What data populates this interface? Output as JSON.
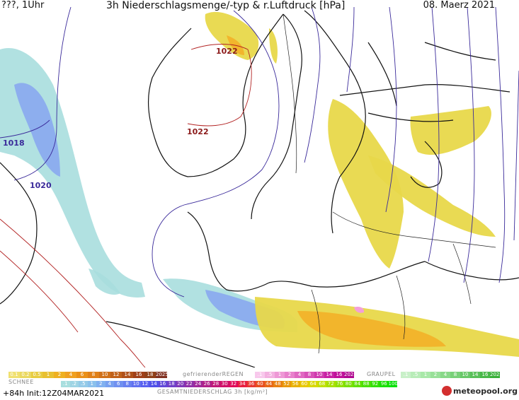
{
  "header": {
    "left": "???, 1Uhr",
    "title": "3h Niederschlagsmenge/-typ & r.Luftdruck [hPa]",
    "date": "08. Maerz 2021"
  },
  "isobars": [
    {
      "label": "1022",
      "color": "#8b1a1a"
    },
    {
      "label": "1022",
      "color": "#8b1a1a"
    },
    {
      "label": "1018",
      "color": "#3a2a9a"
    },
    {
      "label": "1020",
      "color": "#3a2a9a"
    }
  ],
  "legend": {
    "snow_label": "SCHNEE",
    "freezing_rain_label": "gefrierenderREGEN",
    "graupel_label": "GRAUPEL",
    "total_label": "GESAMTNIEDERSCHLAG 3h [kg/m²]",
    "rain_scale": [
      "0.1",
      "0.2",
      "0.5",
      "1",
      "2",
      "4",
      "6",
      "8",
      "10",
      "12",
      "14",
      "16",
      "18",
      "2025+"
    ],
    "freezing_scale": [
      ".1",
      ".5",
      "1",
      "2",
      "4",
      "8",
      "10",
      "14",
      "16",
      "2025+"
    ],
    "graupel_scale": [
      ".1",
      ".5",
      "1",
      "2",
      "4",
      "8",
      "10",
      "14",
      "16",
      "2025+"
    ],
    "total_scale": [
      ".1",
      ".2",
      ".5",
      "1",
      "2",
      "4",
      "6",
      "8",
      "10",
      "12",
      "14",
      "16",
      "18",
      "20",
      "22",
      "24",
      "26",
      "28",
      "30",
      "32",
      "34",
      "36",
      "40",
      "44",
      "48",
      "52",
      "56",
      "60",
      "64",
      "68",
      "72",
      "76",
      "80",
      "84",
      "88",
      "92",
      "96",
      "100"
    ]
  },
  "footer": {
    "run": "+84h  Init:12Z04MAR2021",
    "logo": "meteopool.org"
  },
  "colors": {
    "rain_yellow": "#e8d84a",
    "rain_orange": "#f2b32a",
    "snow_cyan": "#a8dede",
    "snow_blue": "#8aa8f0",
    "freezing_pink": "#f3a0d8",
    "graupel_green": "#a8e8a8"
  }
}
